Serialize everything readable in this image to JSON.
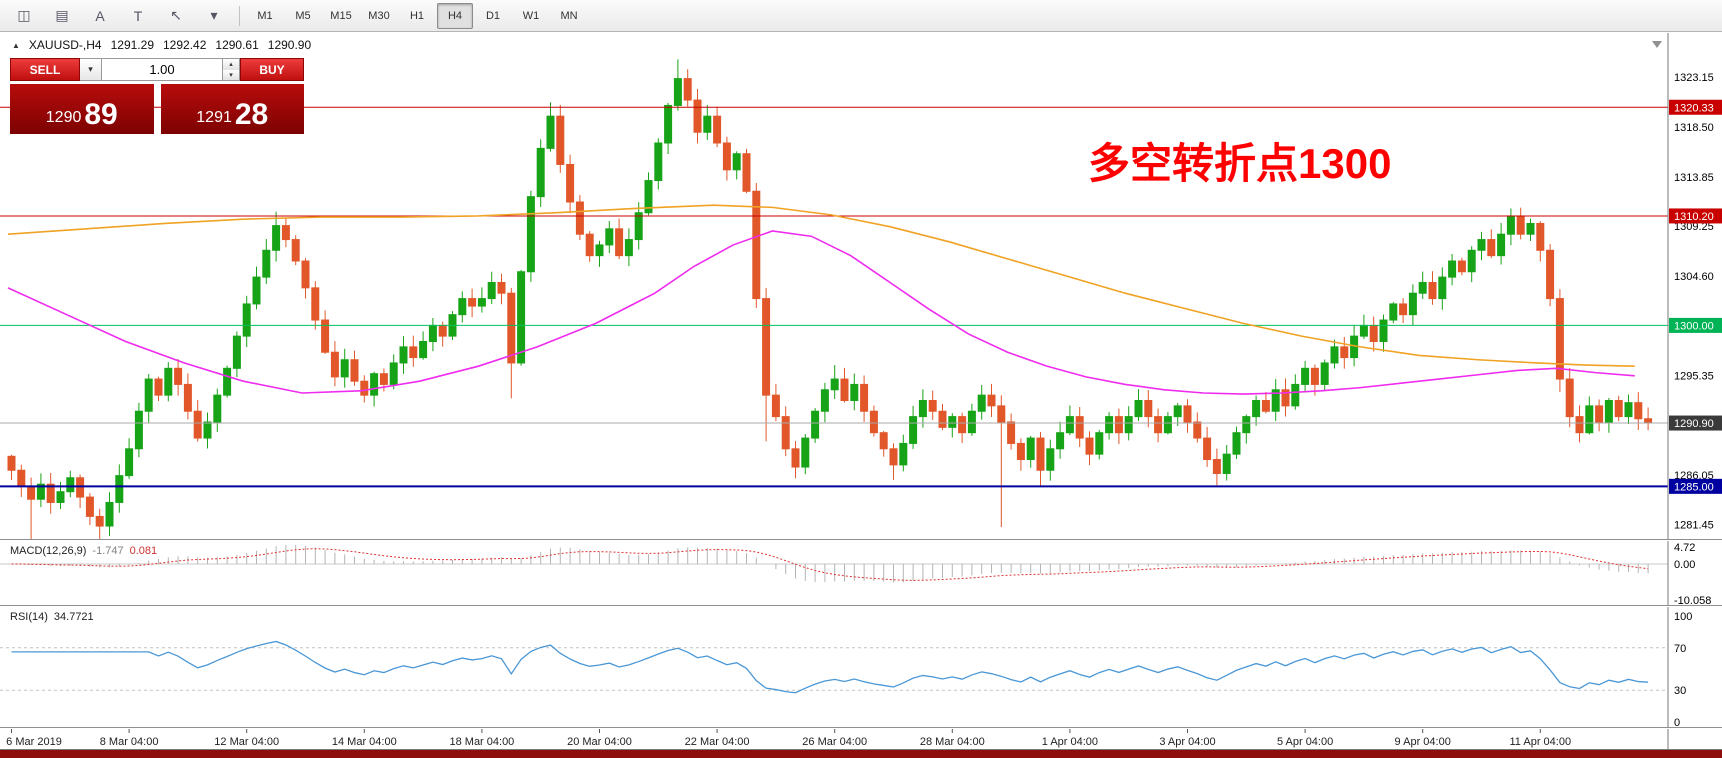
{
  "toolbar": {
    "icons": [
      {
        "name": "chart-candlestick-icon",
        "glyph": "◫"
      },
      {
        "name": "indicators-icon",
        "glyph": "▤"
      },
      {
        "name": "text-annotation-icon",
        "glyph": "A"
      },
      {
        "name": "text-box-icon",
        "glyph": "T"
      },
      {
        "name": "crosshair-cursor-icon",
        "glyph": "↖"
      },
      {
        "name": "dropdown-caret-icon",
        "glyph": "▾"
      }
    ],
    "timeframes": [
      "M1",
      "M5",
      "M15",
      "M30",
      "H1",
      "H4",
      "D1",
      "W1",
      "MN"
    ],
    "active_timeframe": "H4"
  },
  "symbol_bar": {
    "symbol": "XAUUSD-,H4",
    "open": "1291.29",
    "high": "1292.42",
    "low": "1290.61",
    "close": "1290.90"
  },
  "trade_panel": {
    "sell_label": "SELL",
    "buy_label": "BUY",
    "volume": "1.00",
    "sell_price_main": "1290",
    "sell_price_pips": "89",
    "buy_price_main": "1291",
    "buy_price_pips": "28"
  },
  "chart": {
    "annotation": {
      "text": "多空转折点1300",
      "color": "#ff0000"
    },
    "price_axis": [
      "1323.15",
      "1318.50",
      "1313.85",
      "1309.25",
      "1304.60",
      "1295.35",
      "1286.05",
      "1281.45"
    ],
    "hlines": [
      {
        "price": 1320.33,
        "color": "#c80000",
        "label": "1320.33",
        "badge": "#c80000",
        "width": 1
      },
      {
        "price": 1310.2,
        "color": "#c80000",
        "label": "1310.20",
        "badge": "#c80000",
        "width": 1
      },
      {
        "price": 1300.0,
        "color": "#00c060",
        "label": "1300.00",
        "badge": "#00b356",
        "width": 1
      },
      {
        "price": 1285.0,
        "color": "#0000a0",
        "label": "1285.00",
        "badge": "#0000a0",
        "width": 2
      }
    ],
    "current_price": {
      "value": 1290.9,
      "label": "1290.90",
      "line_color": "#a8a8a8",
      "badge": "#3a3a3a"
    },
    "candles": {
      "open0": 1287.8,
      "up_color": "#17a317",
      "down_color": "#e2572a",
      "closes": [
        1286.5,
        1285.0,
        1283.8,
        1285.2,
        1283.5,
        1284.5,
        1285.8,
        1284.0,
        1282.2,
        1281.3,
        1283.5,
        1286.0,
        1288.5,
        1292.0,
        1295.0,
        1293.5,
        1296.0,
        1294.5,
        1292.0,
        1289.5,
        1291.0,
        1293.5,
        1296.0,
        1299.0,
        1302.0,
        1304.5,
        1307.0,
        1309.3,
        1308.0,
        1306.0,
        1303.5,
        1300.5,
        1297.5,
        1295.2,
        1296.8,
        1294.8,
        1293.5,
        1295.5,
        1294.5,
        1296.5,
        1298.0,
        1297.0,
        1298.5,
        1300.0,
        1299.0,
        1301.0,
        1302.5,
        1301.8,
        1302.5,
        1304.0,
        1303.0,
        1296.5,
        1305.0,
        1312.0,
        1316.5,
        1319.5,
        1315.0,
        1311.5,
        1308.5,
        1306.5,
        1307.5,
        1309.0,
        1306.5,
        1308.0,
        1310.5,
        1313.5,
        1317.0,
        1320.5,
        1323.0,
        1321.0,
        1318.0,
        1319.5,
        1317.0,
        1314.5,
        1316.0,
        1312.5,
        1302.5,
        1293.5,
        1291.5,
        1288.5,
        1286.8,
        1289.5,
        1292.0,
        1294.0,
        1295.0,
        1293.0,
        1294.5,
        1292.0,
        1290.0,
        1288.5,
        1287.0,
        1289.0,
        1291.5,
        1293.0,
        1292.0,
        1290.5,
        1291.5,
        1290.0,
        1292.0,
        1293.5,
        1292.5,
        1291.0,
        1289.0,
        1287.5,
        1289.5,
        1286.5,
        1288.5,
        1290.0,
        1291.5,
        1289.5,
        1288.0,
        1290.0,
        1291.5,
        1290.0,
        1291.5,
        1293.0,
        1291.5,
        1290.0,
        1291.5,
        1292.5,
        1291.0,
        1289.5,
        1287.5,
        1286.2,
        1288.0,
        1290.0,
        1291.5,
        1293.0,
        1292.0,
        1294.0,
        1292.5,
        1294.5,
        1296.0,
        1294.5,
        1296.5,
        1298.0,
        1297.0,
        1299.0,
        1300.0,
        1298.5,
        1300.5,
        1302.0,
        1301.0,
        1303.0,
        1304.0,
        1302.5,
        1304.5,
        1306.0,
        1305.0,
        1307.0,
        1308.0,
        1306.5,
        1308.5,
        1310.2,
        1308.5,
        1309.5,
        1307.0,
        1302.5,
        1295.0,
        1291.5,
        1290.0,
        1292.5,
        1291.0,
        1293.0,
        1291.5,
        1292.8,
        1291.3,
        1290.9
      ],
      "overrides": {
        "2": {
          "low": 1280.0
        },
        "9": {
          "low": 1279.9
        },
        "27": {
          "high": 1310.6
        },
        "51": {
          "low": 1293.2
        },
        "55": {
          "high": 1320.8
        },
        "68": {
          "high": 1324.8
        },
        "77": {
          "low": 1289.2
        },
        "84": {
          "high": 1296.3
        },
        "90": {
          "low": 1285.6
        },
        "101": {
          "low": 1281.2
        },
        "105": {
          "low": 1285.0
        },
        "123": {
          "low": 1285.1
        },
        "153": {
          "high": 1310.9
        },
        "158": {
          "low": 1293.8
        }
      }
    },
    "ma_orange": {
      "color": "#f0a224",
      "points": [
        [
          0,
          1308.5
        ],
        [
          8,
          1309.0
        ],
        [
          16,
          1309.5
        ],
        [
          24,
          1309.9
        ],
        [
          32,
          1310.1
        ],
        [
          40,
          1310.1
        ],
        [
          48,
          1310.2
        ],
        [
          56,
          1310.5
        ],
        [
          64,
          1310.9
        ],
        [
          72,
          1311.2
        ],
        [
          78,
          1311.0
        ],
        [
          84,
          1310.3
        ],
        [
          90,
          1309.2
        ],
        [
          96,
          1307.8
        ],
        [
          102,
          1306.2
        ],
        [
          108,
          1304.6
        ],
        [
          114,
          1303.0
        ],
        [
          120,
          1301.6
        ],
        [
          126,
          1300.2
        ],
        [
          132,
          1299.0
        ],
        [
          138,
          1298.0
        ],
        [
          144,
          1297.2
        ],
        [
          150,
          1296.8
        ],
        [
          156,
          1296.5
        ],
        [
          161,
          1296.3
        ],
        [
          166,
          1296.2
        ]
      ]
    },
    "ma_magenta": {
      "color": "#ef2bef",
      "points": [
        [
          0,
          1303.5
        ],
        [
          6,
          1301.0
        ],
        [
          12,
          1298.5
        ],
        [
          18,
          1296.5
        ],
        [
          24,
          1294.8
        ],
        [
          30,
          1293.7
        ],
        [
          36,
          1293.9
        ],
        [
          42,
          1294.8
        ],
        [
          48,
          1296.2
        ],
        [
          54,
          1298.0
        ],
        [
          60,
          1300.2
        ],
        [
          66,
          1303.0
        ],
        [
          70,
          1305.5
        ],
        [
          74,
          1307.5
        ],
        [
          78,
          1308.8
        ],
        [
          82,
          1308.3
        ],
        [
          86,
          1306.5
        ],
        [
          90,
          1304.0
        ],
        [
          94,
          1301.5
        ],
        [
          98,
          1299.2
        ],
        [
          102,
          1297.5
        ],
        [
          106,
          1296.2
        ],
        [
          110,
          1295.2
        ],
        [
          114,
          1294.5
        ],
        [
          118,
          1294.0
        ],
        [
          122,
          1293.7
        ],
        [
          126,
          1293.6
        ],
        [
          130,
          1293.7
        ],
        [
          134,
          1293.9
        ],
        [
          138,
          1294.2
        ],
        [
          142,
          1294.6
        ],
        [
          146,
          1295.0
        ],
        [
          150,
          1295.4
        ],
        [
          154,
          1295.8
        ],
        [
          158,
          1296.0
        ],
        [
          162,
          1295.6
        ],
        [
          166,
          1295.3
        ]
      ]
    },
    "time_axis": [
      {
        "i": 0,
        "label": "6 Mar 2019"
      },
      {
        "i": 12,
        "label": "8 Mar 04:00"
      },
      {
        "i": 24,
        "label": "12 Mar 04:00"
      },
      {
        "i": 36,
        "label": "14 Mar 04:00"
      },
      {
        "i": 48,
        "label": "18 Mar 04:00"
      },
      {
        "i": 60,
        "label": "20 Mar 04:00"
      },
      {
        "i": 72,
        "label": "22 Mar 04:00"
      },
      {
        "i": 84,
        "label": "26 Mar 04:00"
      },
      {
        "i": 96,
        "label": "28 Mar 04:00"
      },
      {
        "i": 108,
        "label": "1 Apr 04:00"
      },
      {
        "i": 120,
        "label": "3 Apr 04:00"
      },
      {
        "i": 132,
        "label": "5 Apr 04:00"
      },
      {
        "i": 144,
        "label": "9 Apr 04:00"
      },
      {
        "i": 156,
        "label": "11 Apr 04:00"
      }
    ]
  },
  "macd": {
    "name": "MACD(12,26,9)",
    "value_main": "-1.747",
    "value_signal": "0.081",
    "axis": [
      "4.72",
      "0.00",
      "-10.058"
    ],
    "signal_color": "#e03030",
    "hist_color": "#b4b4b4"
  },
  "rsi": {
    "name": "RSI(14)",
    "value": "34.7721",
    "axis": [
      "100",
      "70",
      "30",
      "0"
    ],
    "line_color": "#4a97d6"
  }
}
